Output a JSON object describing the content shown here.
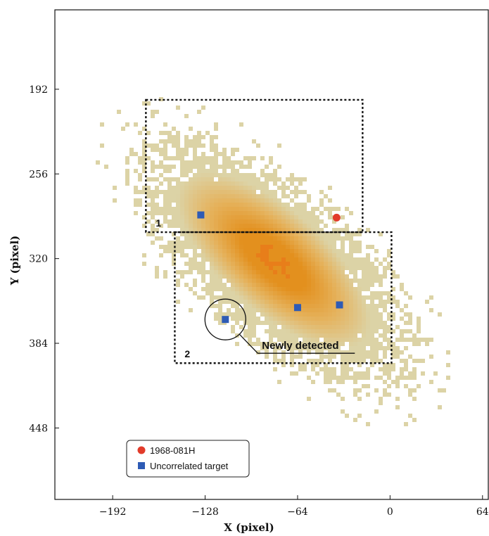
{
  "chart_data": {
    "type": "heatmap",
    "title": "",
    "xlabel": "X (pixel)",
    "ylabel": "Y (pixel)",
    "xlim": [
      -232,
      68
    ],
    "ylim": [
      502,
      132
    ],
    "xticks": [
      -192,
      -128,
      -64,
      0,
      64
    ],
    "yticks": [
      192,
      256,
      320,
      384,
      448
    ],
    "grid": false,
    "legend_position": "bottom-left",
    "colors": {
      "low": "#dcd3a6",
      "mid": "#e5b25c",
      "high": "#e3901e",
      "core": "#e87e1a",
      "catalog": "#e23b2a",
      "uncorrelated": "#2e5bb5",
      "box": "#111111"
    },
    "density": {
      "description_center": [
        -80,
        322
      ],
      "bins_px": 6
    },
    "regions": [
      {
        "label": "1",
        "x_range": [
          -169,
          -19
        ],
        "y_range": [
          200,
          300
        ]
      },
      {
        "label": "2",
        "x_range": [
          -149,
          1
        ],
        "y_range": [
          300,
          399
        ]
      }
    ],
    "series": [
      {
        "name": "1968-081H",
        "marker": "circle",
        "color": "#e23b2a",
        "points": [
          {
            "x": -37,
            "y": 289
          }
        ]
      },
      {
        "name": "Uncorrelated target",
        "marker": "square",
        "color": "#2e5bb5",
        "points": [
          {
            "x": -131,
            "y": 287
          },
          {
            "x": -64,
            "y": 357
          },
          {
            "x": -35,
            "y": 355
          },
          {
            "x": -114,
            "y": 366
          }
        ]
      }
    ],
    "annotations": [
      {
        "text": "Newly detected",
        "x": -114,
        "y": 366
      }
    ]
  }
}
